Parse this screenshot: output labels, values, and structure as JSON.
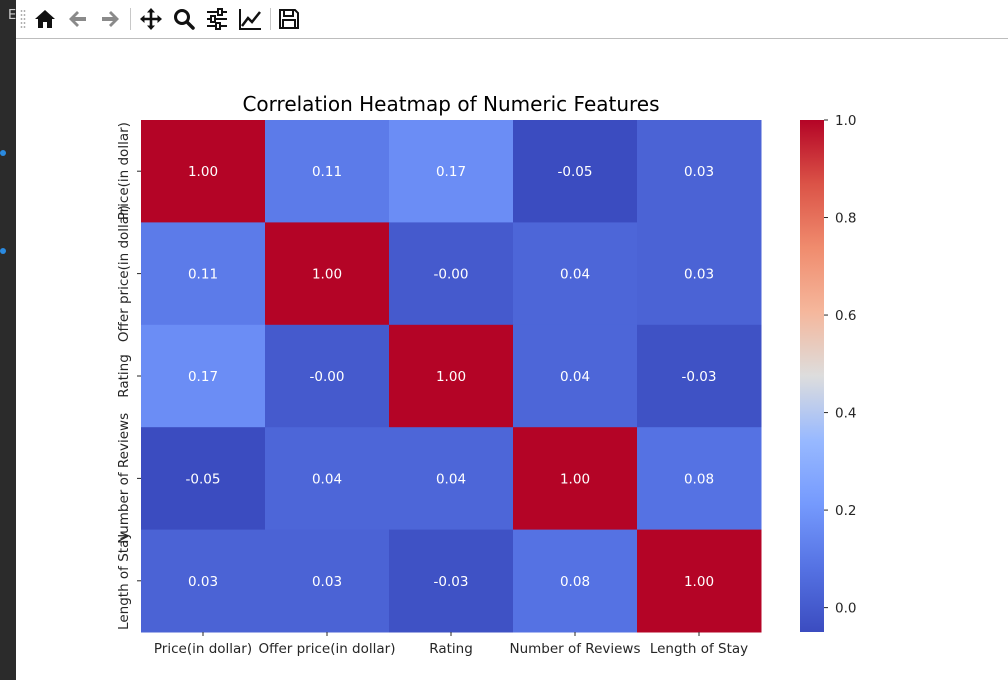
{
  "toolbar": {
    "buttons": [
      {
        "name": "home-button",
        "icon": "home-icon"
      },
      {
        "name": "back-button",
        "icon": "arrow-left-icon"
      },
      {
        "name": "forward-button",
        "icon": "arrow-right-icon"
      },
      {
        "name": "pan-button",
        "icon": "move-icon"
      },
      {
        "name": "zoom-button",
        "icon": "magnifier-icon"
      },
      {
        "name": "configure-subplots-button",
        "icon": "sliders-icon"
      },
      {
        "name": "edit-axis-button",
        "icon": "line-chart-icon"
      },
      {
        "name": "save-button",
        "icon": "floppy-disk-icon"
      }
    ]
  },
  "left_strip": {
    "edge_label": "E"
  },
  "chart_data": {
    "type": "heatmap",
    "title": "Correlation Heatmap of Numeric Features",
    "xlabel": "",
    "ylabel": "",
    "x_categories": [
      "Price(in dollar)",
      "Offer price(in dollar)",
      "Rating",
      "Number of Reviews",
      "Length of Stay"
    ],
    "y_categories": [
      "Price(in dollar)",
      "Offer price(in dollar)",
      "Rating",
      "Number of Reviews",
      "Length of Stay"
    ],
    "values": [
      [
        1.0,
        0.11,
        0.17,
        -0.05,
        0.03
      ],
      [
        0.11,
        1.0,
        -0.0,
        0.04,
        0.03
      ],
      [
        0.17,
        -0.0,
        1.0,
        0.04,
        -0.03
      ],
      [
        -0.05,
        0.04,
        0.04,
        1.0,
        0.08
      ],
      [
        0.03,
        0.03,
        -0.03,
        0.08,
        1.0
      ]
    ],
    "annotations": [
      [
        "1.00",
        "0.11",
        "0.17",
        "-0.05",
        "0.03"
      ],
      [
        "0.11",
        "1.00",
        "-0.00",
        "0.04",
        "0.03"
      ],
      [
        "0.17",
        "-0.00",
        "1.00",
        "0.04",
        "-0.03"
      ],
      [
        "-0.05",
        "0.04",
        "0.04",
        "1.00",
        "0.08"
      ],
      [
        "0.03",
        "0.03",
        "-0.03",
        "0.08",
        "1.00"
      ]
    ],
    "colormap": "coolwarm",
    "vmin": -0.05,
    "vmax": 1.0,
    "colorbar": {
      "ticks": [
        0.0,
        0.2,
        0.4,
        0.6,
        0.8,
        1.0
      ],
      "tick_labels": [
        "0.0",
        "0.2",
        "0.4",
        "0.6",
        "0.8",
        "1.0"
      ]
    },
    "grid": false,
    "legend": "colorbar-right"
  }
}
